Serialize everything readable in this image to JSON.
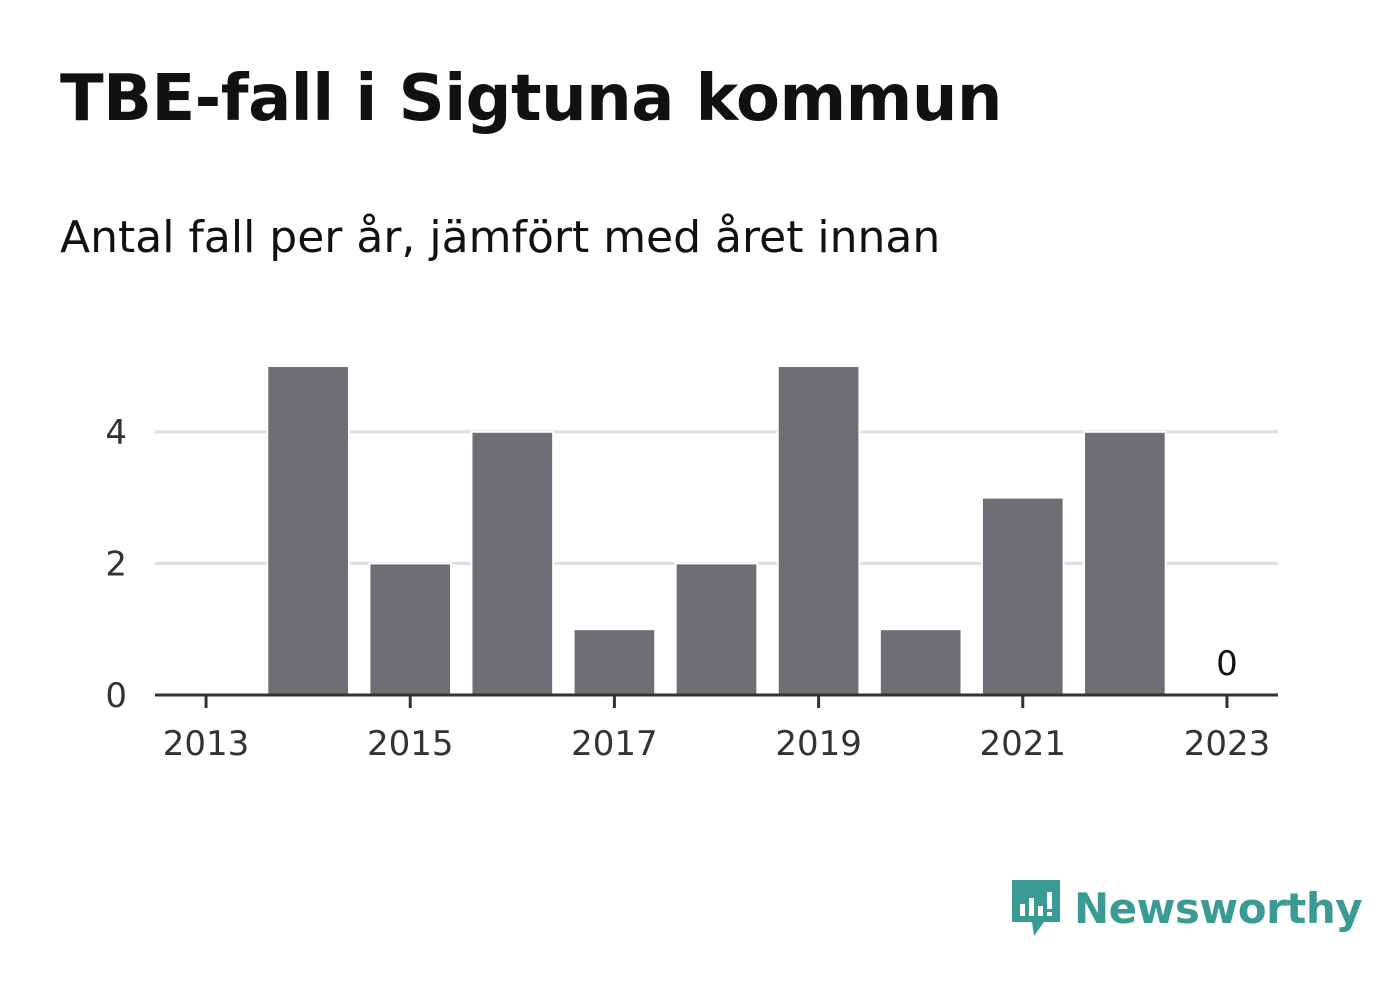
{
  "title": "TBE-fall i Sigtuna kommun",
  "subtitle": "Antal fall per år, jämfört med året innan",
  "colors": {
    "bar": "#6f6e74",
    "grid": "#dedede",
    "axis": "#333333",
    "brand": "#3a9a94"
  },
  "logo": {
    "name": "Newsworthy",
    "icon": "newsworthy-bar-chart-icon"
  },
  "chart_data": {
    "type": "bar",
    "x": [
      2013,
      2014,
      2015,
      2016,
      2017,
      2018,
      2019,
      2020,
      2021,
      2022,
      2023
    ],
    "values": [
      0,
      5,
      2,
      4,
      1,
      2,
      5,
      1,
      3,
      4,
      0
    ],
    "xticks": [
      "2013",
      "2015",
      "2017",
      "2019",
      "2021",
      "2023"
    ],
    "yticks": [
      "0",
      "2",
      "4"
    ],
    "ylim": [
      0,
      5.3
    ],
    "data_labels": [
      {
        "x": 2023,
        "text": "0"
      }
    ],
    "grid": "horizontal",
    "title": "TBE-fall i Sigtuna kommun",
    "xlabel": "",
    "ylabel": ""
  }
}
